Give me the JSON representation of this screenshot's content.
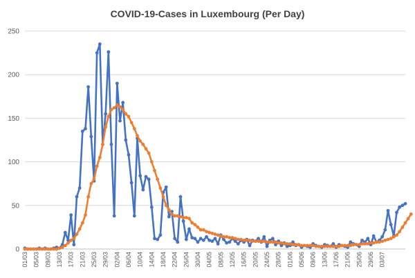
{
  "chart_data": {
    "type": "line",
    "title": "COVID-19-Cases in Luxembourg (Per Day)",
    "xlabel": "",
    "ylabel": "",
    "ylim": [
      0,
      250
    ],
    "yticks": [
      0,
      50,
      100,
      150,
      200,
      250
    ],
    "grid": true,
    "legend": "none",
    "x_tick_labels": [
      "01/03",
      "05/03",
      "09/03",
      "13/03",
      "17/03",
      "21/03",
      "25/03",
      "29/03",
      "02/04",
      "06/04",
      "10/04",
      "14/04",
      "18/04",
      "22/04",
      "26/04",
      "30/04",
      "04/05",
      "08/05",
      "12/05",
      "16/05",
      "20/05",
      "24/05",
      "28/05",
      "01/06",
      "05/06",
      "09/06",
      "13/06",
      "17/06",
      "21/06",
      "25/06",
      "29/06",
      "03/07"
    ],
    "series": [
      {
        "color": "#4472C4",
        "values": [
          1,
          0,
          0,
          0,
          0,
          1,
          0,
          1,
          0,
          0,
          1,
          2,
          1,
          5,
          19,
          10,
          39,
          5,
          60,
          70,
          135,
          138,
          186,
          129,
          78,
          225,
          235,
          120,
          155,
          226,
          120,
          38,
          190,
          147,
          168,
          125,
          108,
          76,
          38,
          127,
          84,
          68,
          83,
          80,
          48,
          12,
          11,
          16,
          65,
          71,
          37,
          43,
          12,
          8,
          60,
          32,
          11,
          23,
          13,
          12,
          8,
          12,
          10,
          14,
          10,
          9,
          12,
          6,
          16,
          11,
          7,
          8,
          12,
          9,
          6,
          10,
          8,
          11,
          4,
          10,
          9,
          12,
          8,
          14,
          3,
          10,
          12,
          5,
          9,
          4,
          7,
          3,
          4,
          8,
          4,
          5,
          2,
          4,
          3,
          2,
          6,
          4,
          3,
          2,
          5,
          4,
          3,
          6,
          2,
          5,
          4,
          3,
          2,
          8,
          6,
          5,
          3,
          10,
          8,
          12,
          5,
          15,
          8,
          10,
          14,
          22,
          44,
          28,
          15,
          42,
          48,
          50,
          52
        ]
      },
      {
        "color": "#ED7D31",
        "values": [
          0,
          0,
          0,
          0,
          0,
          0,
          0,
          0,
          0,
          0,
          0,
          0,
          1,
          2,
          4,
          7,
          10,
          12,
          17,
          23,
          30,
          39,
          60,
          75,
          80,
          95,
          105,
          120,
          140,
          152,
          160,
          162,
          165,
          163,
          160,
          155,
          152,
          145,
          138,
          130,
          124,
          120,
          115,
          110,
          100,
          90,
          80,
          70,
          60,
          50,
          45,
          40,
          38,
          38,
          37,
          36,
          36,
          35,
          30,
          28,
          25,
          22,
          22,
          20,
          19,
          18,
          17,
          16,
          15,
          14,
          14,
          13,
          13,
          12,
          11,
          11,
          10,
          10,
          10,
          9,
          9,
          9,
          9,
          9,
          8,
          8,
          8,
          8,
          7,
          7,
          6,
          6,
          6,
          5,
          5,
          5,
          4,
          4,
          4,
          4,
          4,
          3,
          3,
          3,
          3,
          3,
          3,
          3,
          3,
          3,
          4,
          4,
          4,
          4,
          5,
          5,
          5,
          6,
          6,
          6,
          7,
          7,
          8,
          8,
          9,
          10,
          11,
          12,
          14,
          16,
          20,
          25,
          30,
          35,
          40
        ]
      }
    ]
  }
}
